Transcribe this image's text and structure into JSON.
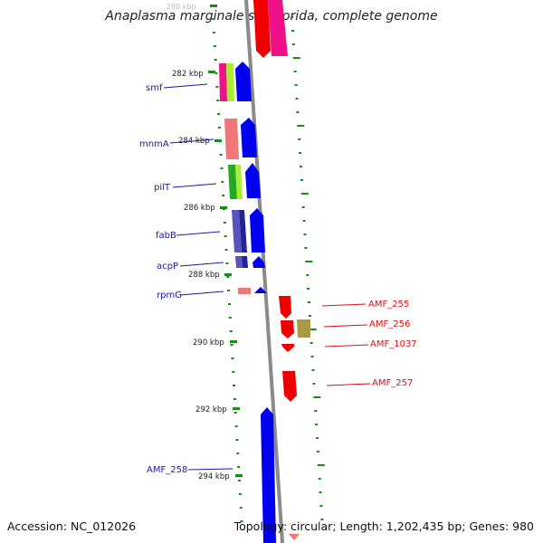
{
  "title": "Anaplasma marginale str. Florida, complete genome",
  "footer": {
    "accession": "Accession: NC_012026",
    "summary": "Topology: circular; Length: 1,202,435 bp; Genes: 980"
  },
  "colors": {
    "backbone": "#8a8a8a",
    "tick": "#1a8a1a",
    "label_left": "#1a1aaa",
    "label_right": "#dd1111",
    "gene_blue": "#0000ee",
    "gene_red": "#ee0000",
    "gene_pink": "#ee1188",
    "gene_salmon": "#ee7777",
    "gene_green": "#22aa22",
    "gene_lime": "#aaee33",
    "gene_navy": "#22229a",
    "gene_slate": "#5555bb",
    "gene_khaki": "#aa9944"
  },
  "scale_labels": [
    "280 kbp",
    "282 kbp",
    "284 kbp",
    "286 kbp",
    "288 kbp",
    "290 kbp",
    "292 kbp",
    "294 kbp"
  ],
  "gene_labels_left": [
    "smf",
    "mnmA",
    "pilT",
    "fabB",
    "acpP",
    "rpmG",
    "AMF_258"
  ],
  "gene_labels_right": [
    "AMF_255",
    "AMF_256",
    "AMF_1037",
    "AMF_257"
  ]
}
